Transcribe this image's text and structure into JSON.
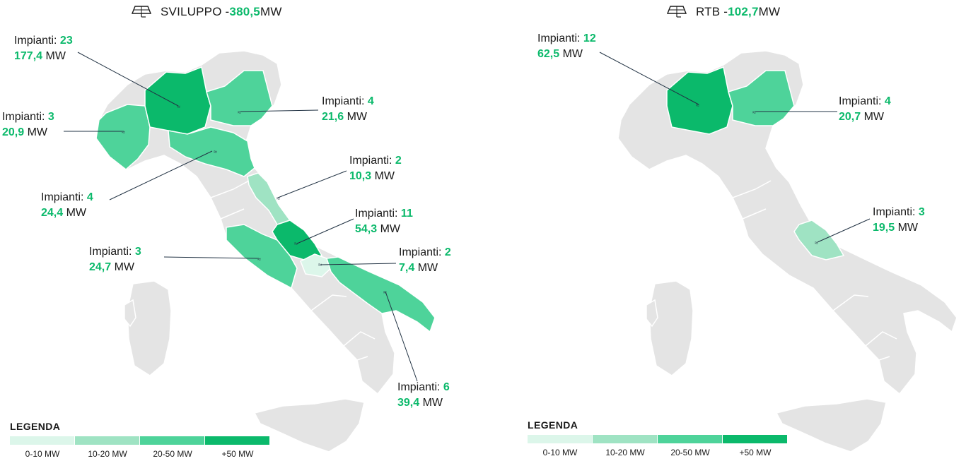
{
  "colors": {
    "gray": "#e4e4e4",
    "border": "#ffffff",
    "accent": "#0bb96b",
    "level_1": "#dcf6ea",
    "level_2": "#9fe3c3",
    "level_3": "#4ed39a",
    "level_4": "#0bb96b"
  },
  "left_panel": {
    "title_prefix": "SVILUPPO - ",
    "title_value": "380,5",
    "title_unit": " MW",
    "icon": "solar-panel-icon",
    "regions": [
      {
        "name": "Lombardia",
        "impianti_label": "Impianti: ",
        "impianti": "23",
        "mw": "177,4",
        "mw_unit": " MW"
      },
      {
        "name": "Veneto",
        "impianti_label": "Impianti: ",
        "impianti": "4",
        "mw": "21,6",
        "mw_unit": " MW"
      },
      {
        "name": "Piemonte",
        "impianti_label": "Impianti: ",
        "impianti": "3",
        "mw": "20,9",
        "mw_unit": " MW"
      },
      {
        "name": "Marche",
        "impianti_label": "Impianti: ",
        "impianti": "2",
        "mw": "10,3",
        "mw_unit": " MW"
      },
      {
        "name": "Emilia-Romagna",
        "impianti_label": "Impianti: ",
        "impianti": "4",
        "mw": "24,4",
        "mw_unit": " MW"
      },
      {
        "name": "Abruzzo",
        "impianti_label": "Impianti: ",
        "impianti": "11",
        "mw": "54,3",
        "mw_unit": " MW"
      },
      {
        "name": "Lazio",
        "impianti_label": "Impianti: ",
        "impianti": "3",
        "mw": "24,7",
        "mw_unit": " MW"
      },
      {
        "name": "Molise",
        "impianti_label": "Impianti: ",
        "impianti": "2",
        "mw": "7,4",
        "mw_unit": " MW"
      },
      {
        "name": "Puglia",
        "impianti_label": "Impianti: ",
        "impianti": "6",
        "mw": "39,4",
        "mw_unit": " MW"
      }
    ]
  },
  "right_panel": {
    "title_prefix": "RTB - ",
    "title_value": "102,7",
    "title_unit": " MW",
    "icon": "solar-panel-icon",
    "regions": [
      {
        "name": "Lombardia",
        "impianti_label": "Impianti: ",
        "impianti": "12",
        "mw": "62,5",
        "mw_unit": " MW"
      },
      {
        "name": "Veneto",
        "impianti_label": "Impianti: ",
        "impianti": "4",
        "mw": "20,7",
        "mw_unit": " MW"
      },
      {
        "name": "Abruzzo",
        "impianti_label": "Impianti: ",
        "impianti": "3",
        "mw": "19,5",
        "mw_unit": " MW"
      }
    ]
  },
  "legend": {
    "title": "LEGENDA",
    "items": [
      {
        "label": "0-10 MW",
        "color": "#dcf6ea"
      },
      {
        "label": "10-20 MW",
        "color": "#9fe3c3"
      },
      {
        "label": "20-50 MW",
        "color": "#4ed39a"
      },
      {
        "label": "+50 MW",
        "color": "#0bb96b"
      }
    ]
  }
}
